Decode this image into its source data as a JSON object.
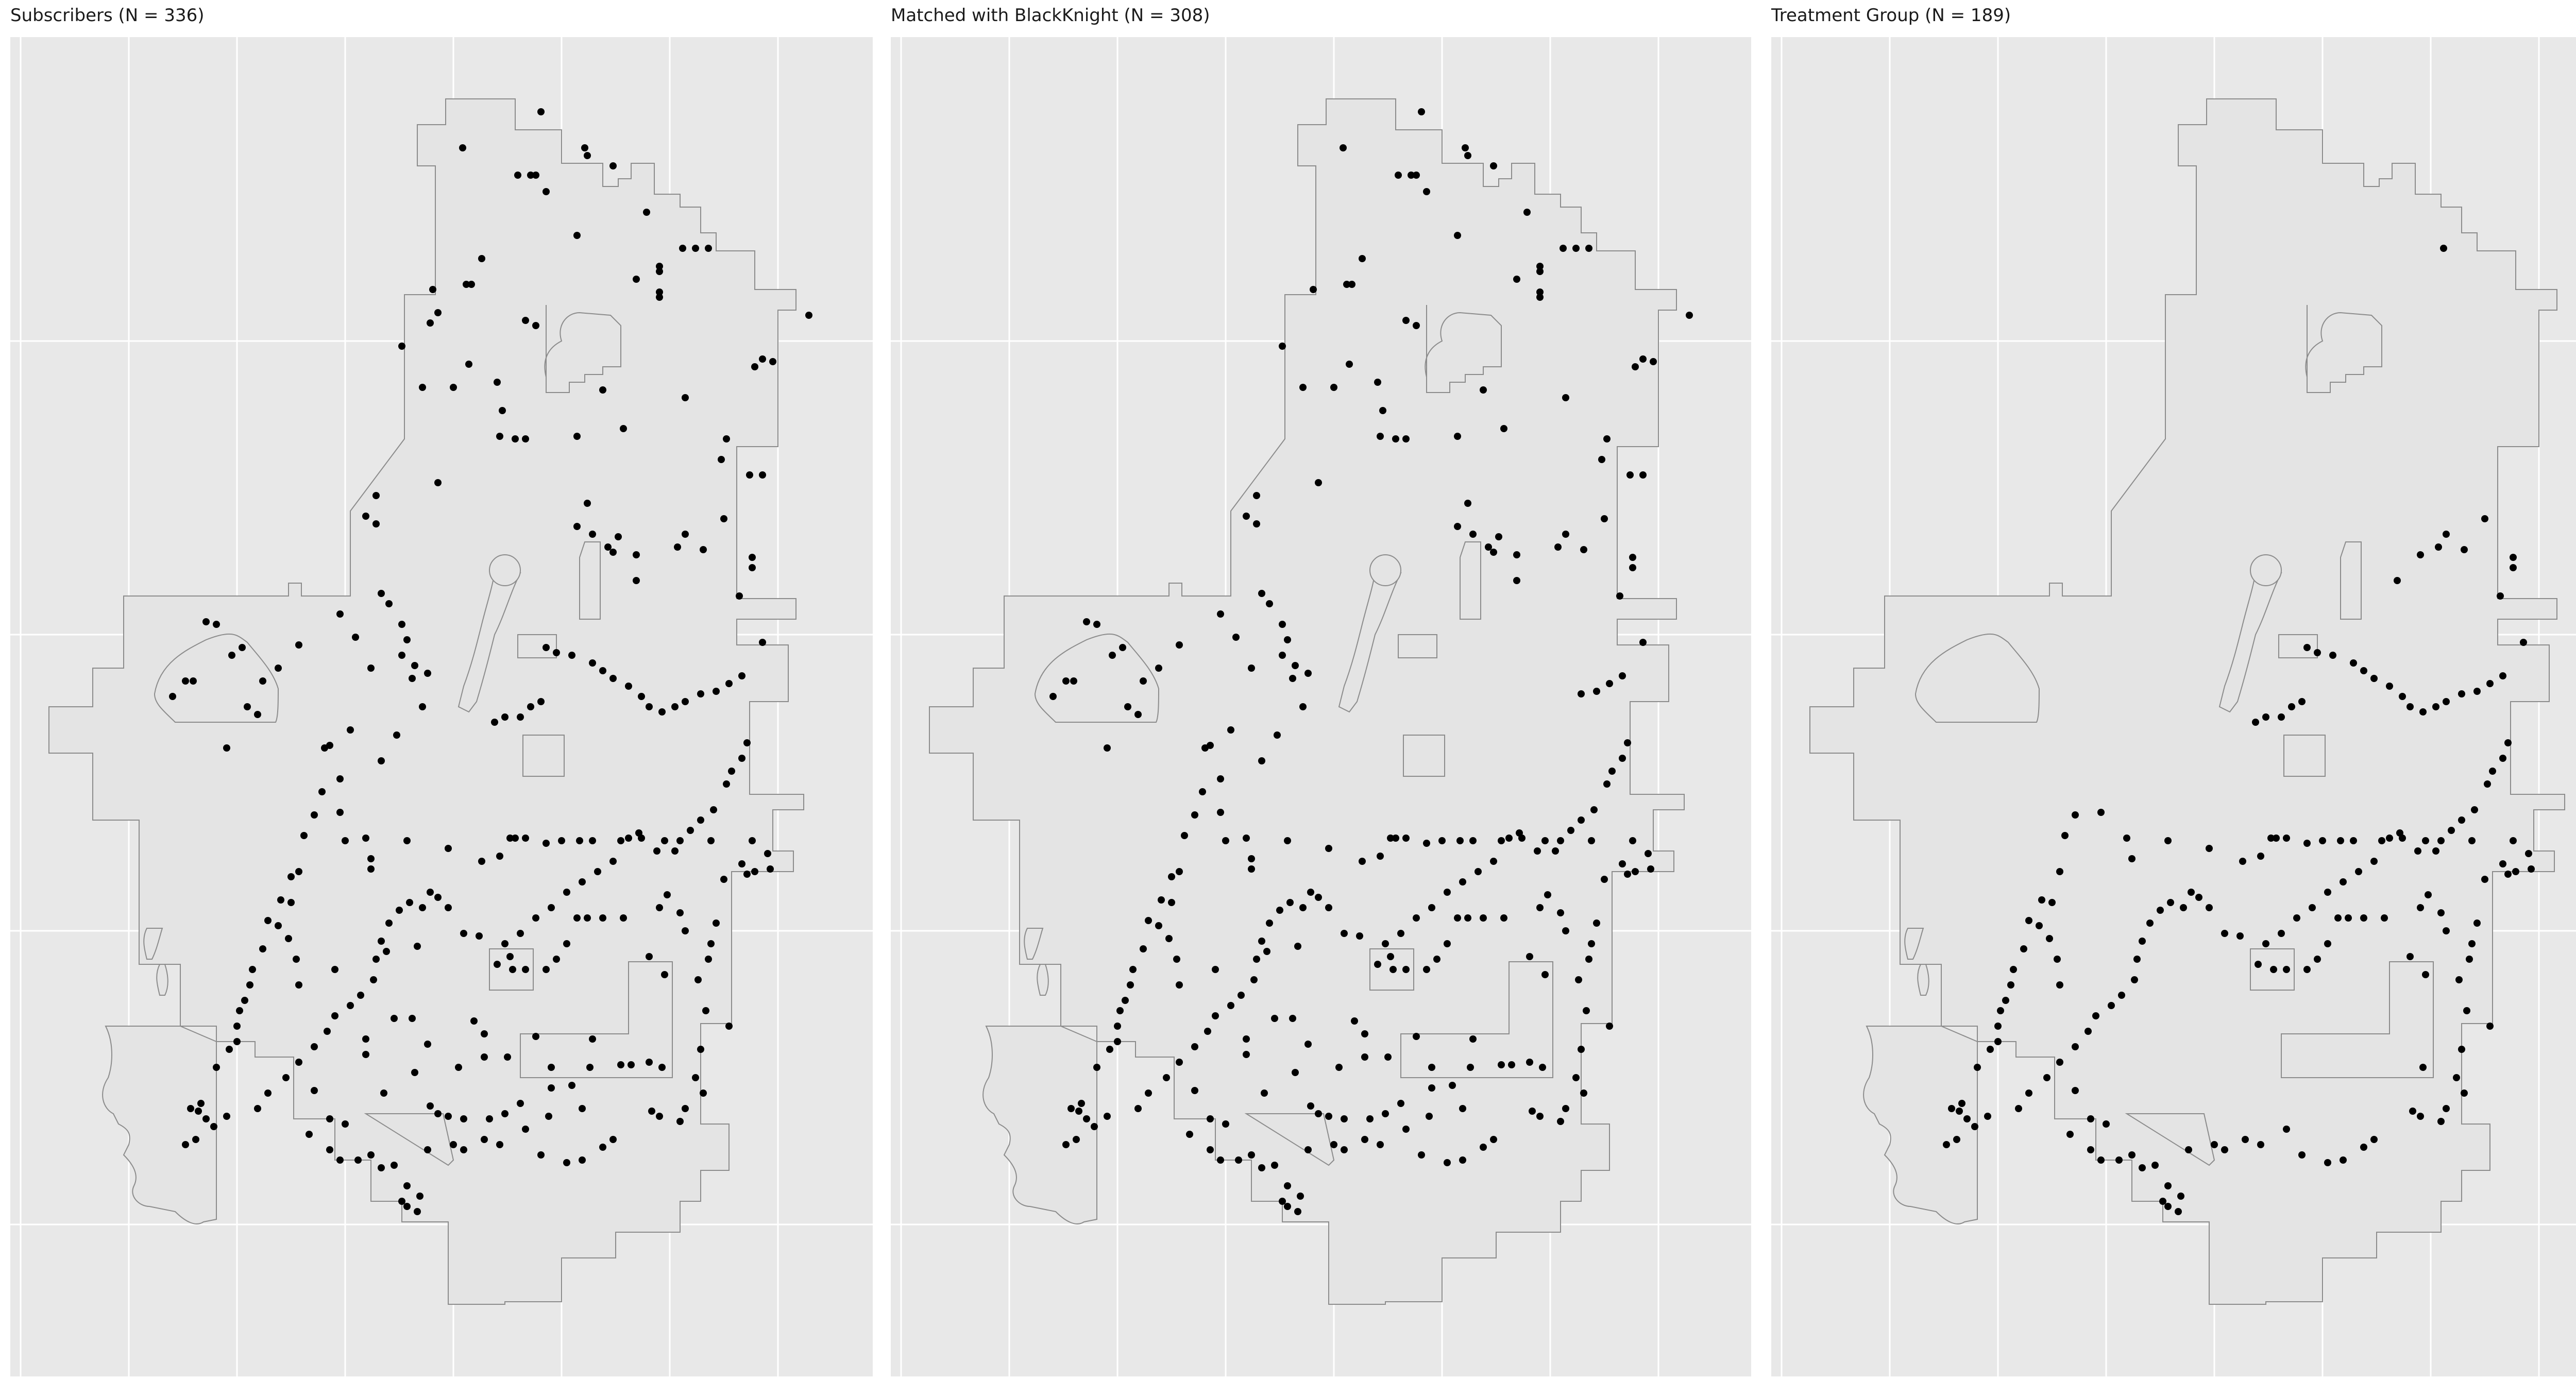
{
  "figure": {
    "panels": [
      {
        "id": "subscribers",
        "title": "Subscribers (N = 336)"
      },
      {
        "id": "matched",
        "title": "Matched with BlackKnight (N = 308)"
      },
      {
        "id": "treatment",
        "title": "Treatment Group (N = 189)"
      }
    ]
  },
  "colors": {
    "panel_background": "#e8e8e8",
    "gridline": "#ffffff",
    "region_fill": "#e4e4e4",
    "region_outline": "#8c8c8c",
    "point": "#000000"
  }
}
